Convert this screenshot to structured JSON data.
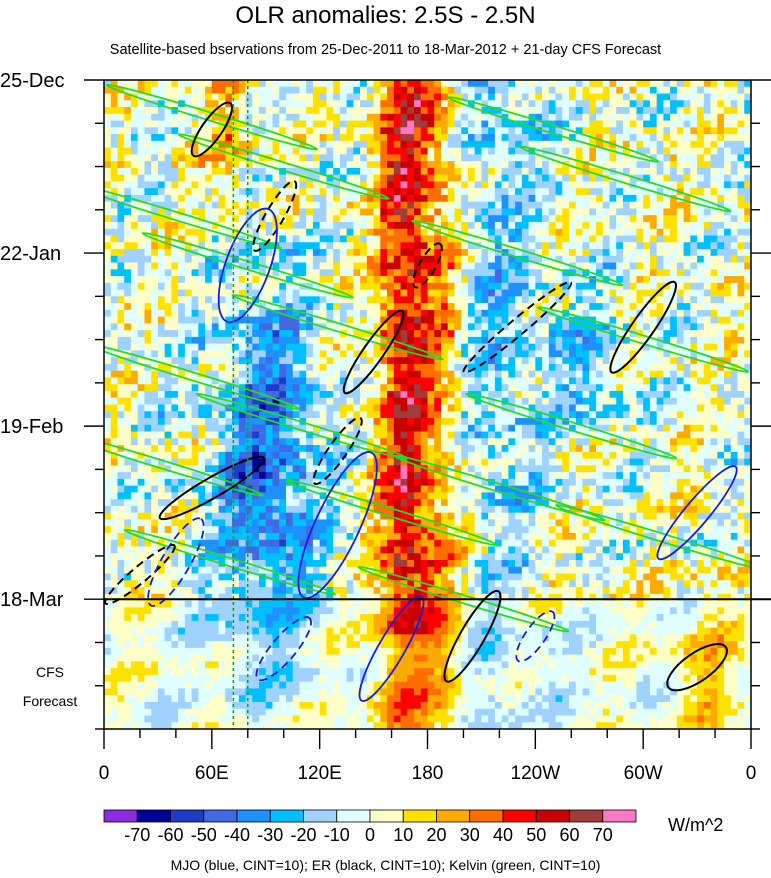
{
  "chart_data": {
    "type": "heatmap",
    "title": "OLR anomalies: 2.5S - 2.5N",
    "subtitle": "Satellite-based bservations from 25-Dec-2011 to 18-Mar-2012 + 21-day CFS Forecast",
    "x_ticks": [
      "0",
      "60E",
      "120E",
      "180",
      "120W",
      "60W",
      "0"
    ],
    "x_tick_values": [
      0,
      60,
      120,
      180,
      240,
      300,
      360
    ],
    "xlim": [
      0,
      360
    ],
    "y_ticks": [
      "25-Dec",
      "22-Jan",
      "19-Feb",
      "18-Mar"
    ],
    "y_tick_days": [
      0,
      28,
      56,
      84
    ],
    "ylim_days": [
      0,
      105
    ],
    "observation_end": "18-Mar",
    "forecast_label": [
      "CFS",
      "Forecast"
    ],
    "colorbar": {
      "units": "W/m^2",
      "levels": [
        "-70",
        "-60",
        "-50",
        "-40",
        "-30",
        "-20",
        "-10",
        "0",
        "10",
        "20",
        "30",
        "40",
        "50",
        "60",
        "70"
      ],
      "colors": [
        "#8a2be2",
        "#000096",
        "#1e3cc8",
        "#4169e1",
        "#1e90ff",
        "#00bfff",
        "#a0d2ff",
        "#e0ffff",
        "#ffffc8",
        "#ffe100",
        "#ffaa00",
        "#ff6e00",
        "#ff0000",
        "#c80000",
        "#a03c3c",
        "#ff78c8"
      ]
    },
    "contours": {
      "caption": "MJO (blue, CINT=10); ER (black, CINT=10); Kelvin (green, CINT=10)",
      "mjo_color": "#1a1adc",
      "er_color": "#000000",
      "kelvin_color": "#22dd22"
    }
  }
}
